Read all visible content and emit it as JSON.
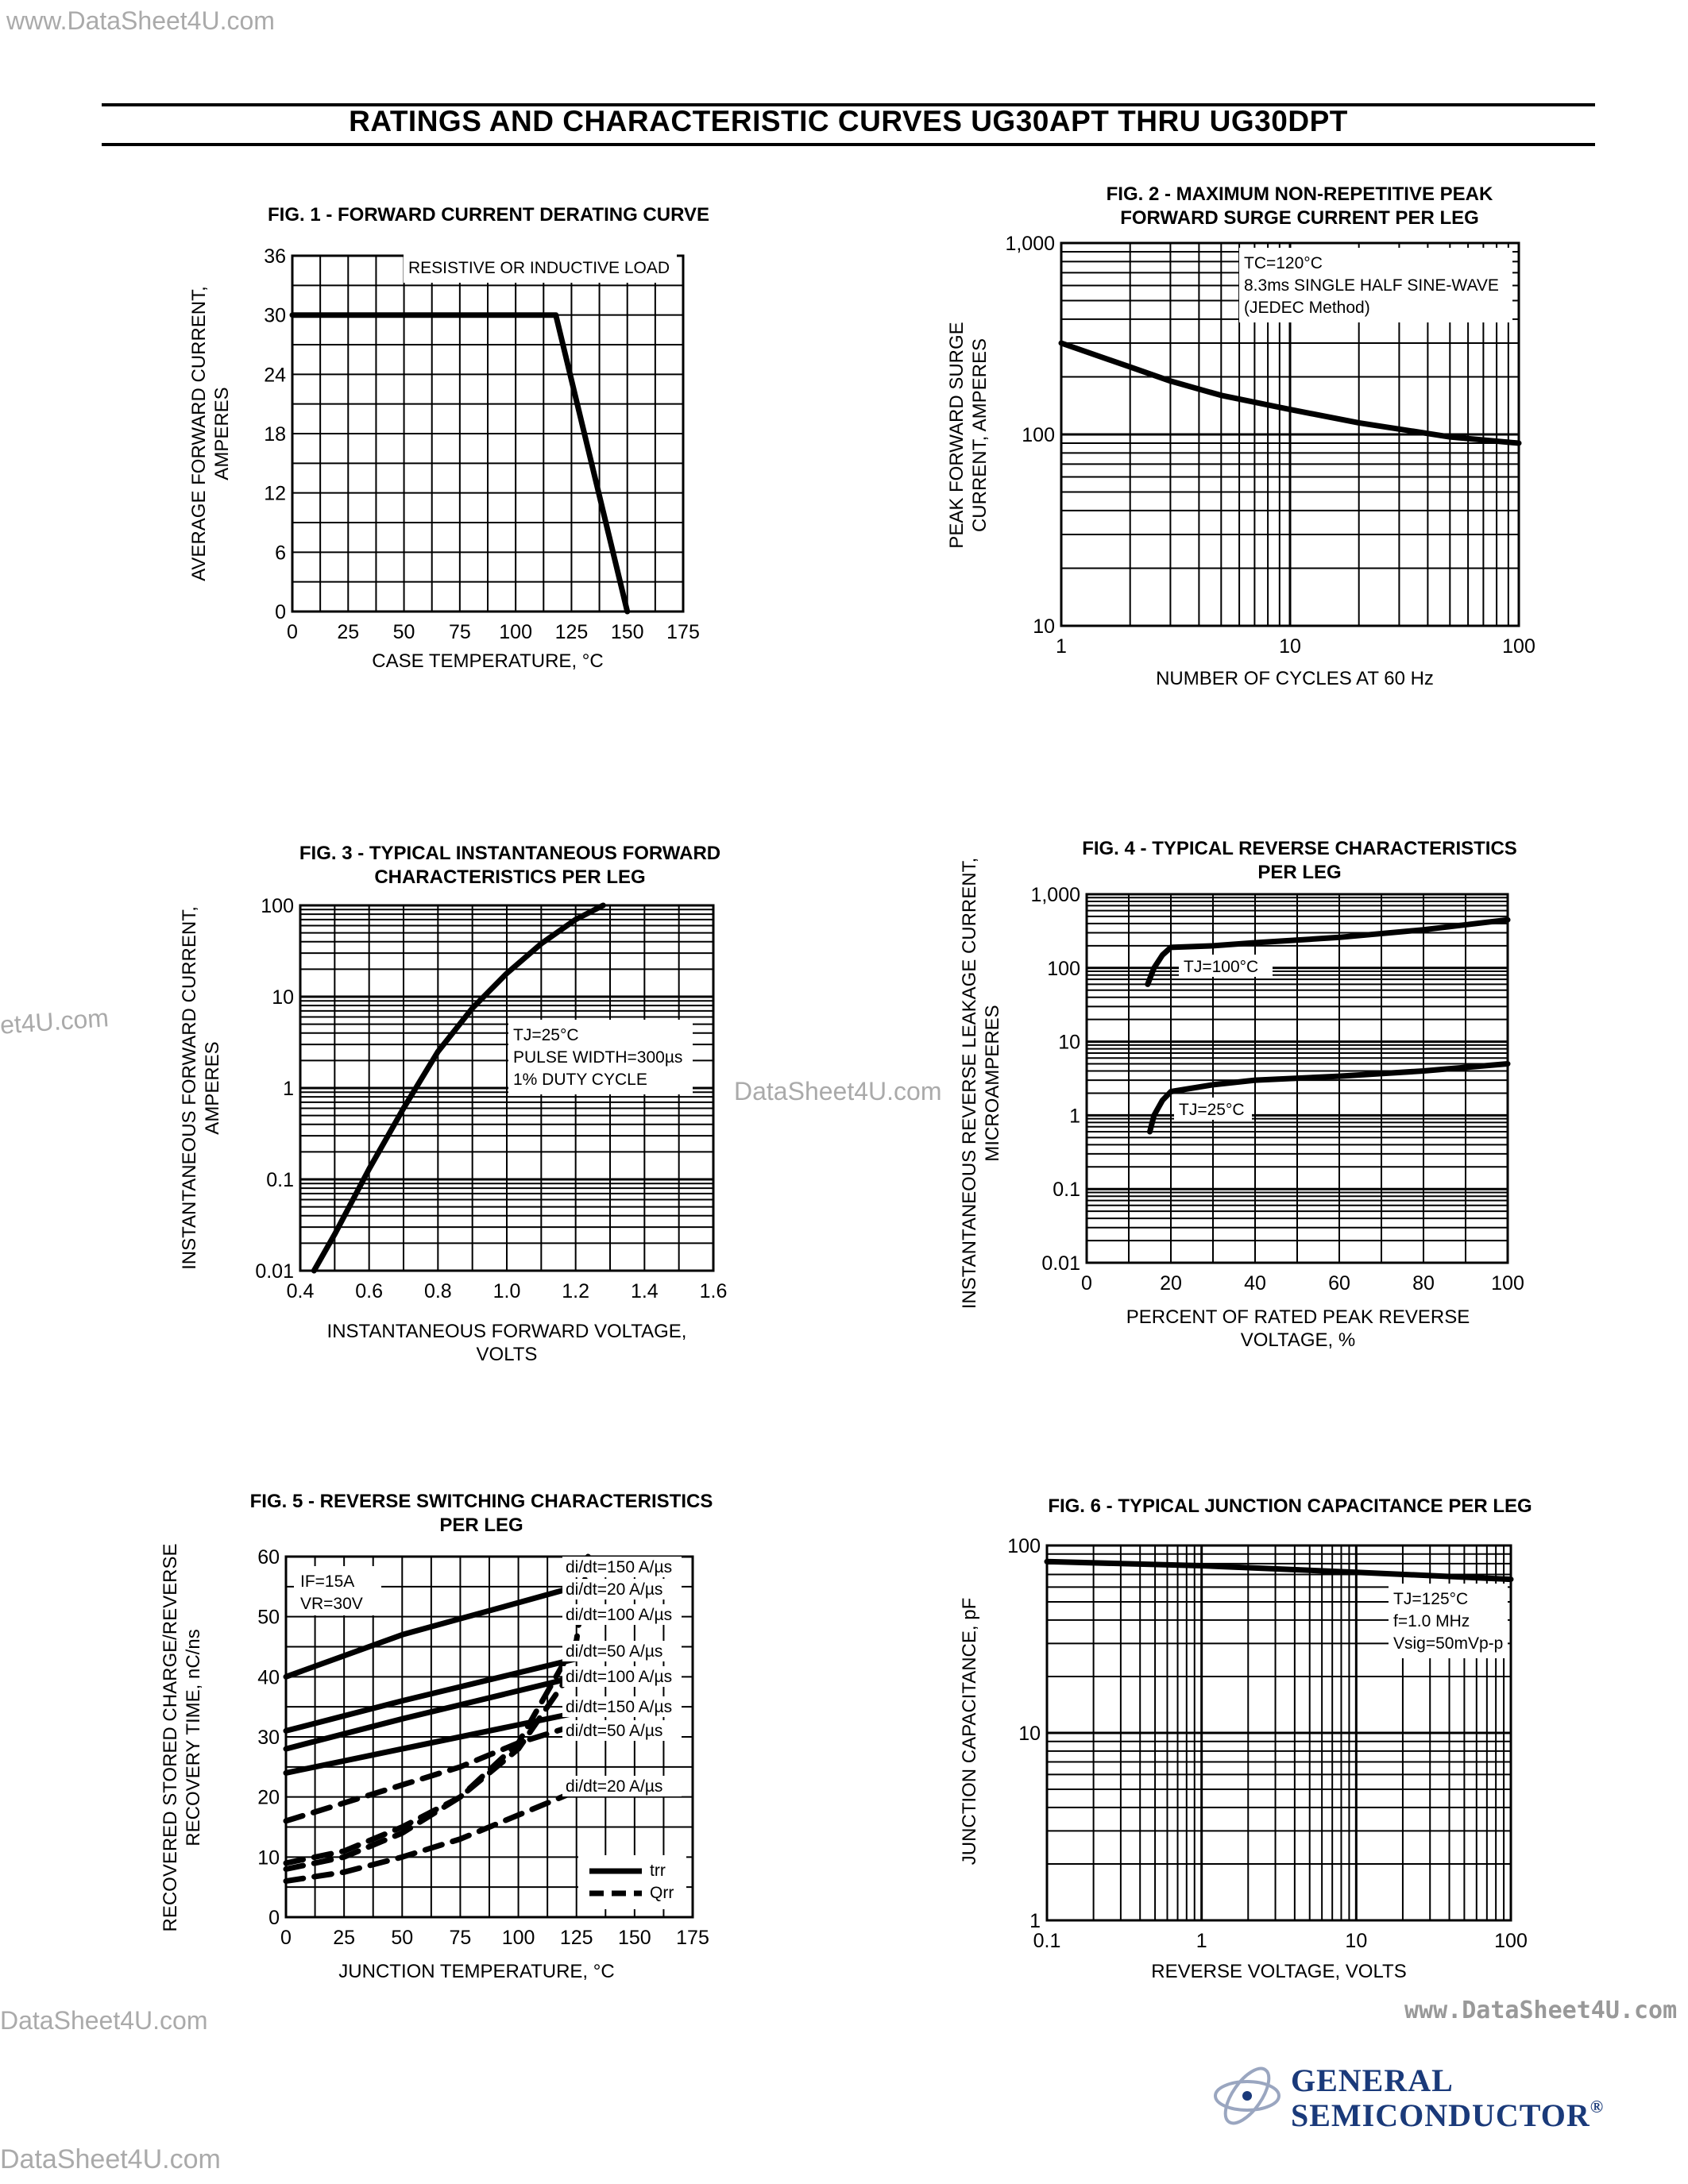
{
  "watermarks": {
    "top_left": "www.DataSheet4U.com",
    "mid_left": "et4U.com",
    "mid_center": "DataSheet4U.com",
    "low_left": "DataSheet4U.com",
    "low_right": "www.DataSheet4U.com",
    "bottom_left": "DataSheet4U.com"
  },
  "page_title": "RATINGS AND CHARACTERISTIC CURVES UG30APT THRU UG30DPT",
  "brand": {
    "line1": "GENERAL",
    "line2": "SEMICONDUCTOR",
    "mark": "®",
    "color": "#1a3a7a"
  },
  "chart_data": [
    {
      "id": "fig1",
      "type": "line",
      "title": "FIG. 1 - FORWARD CURRENT DERATING CURVE",
      "xlabel": "CASE TEMPERATURE, °C",
      "ylabel": [
        "AVERAGE FORWARD CURRENT,",
        "AMPERES"
      ],
      "x_ticks": [
        "0",
        "25",
        "50",
        "75",
        "100",
        "125",
        "150",
        "175"
      ],
      "y_ticks": [
        "0",
        "6",
        "12",
        "18",
        "24",
        "30",
        "36"
      ],
      "xlim": [
        0,
        175
      ],
      "ylim": [
        0,
        36
      ],
      "annotation": [
        "RESISTIVE OR INDUCTIVE LOAD"
      ],
      "series": [
        {
          "x": [
            0,
            118,
            150
          ],
          "y": [
            30,
            30,
            0
          ]
        }
      ]
    },
    {
      "id": "fig2",
      "type": "line",
      "xscale": "log",
      "yscale": "log",
      "title": [
        "FIG. 2 - MAXIMUM NON-REPETITIVE PEAK",
        "FORWARD SURGE CURRENT PER LEG"
      ],
      "xlabel": "NUMBER OF CYCLES AT 60 Hz",
      "ylabel": [
        "PEAK FORWARD SURGE",
        "CURRENT, AMPERES"
      ],
      "x_ticks": [
        "1",
        "10",
        "100"
      ],
      "y_ticks": [
        "10",
        "100",
        "1,000"
      ],
      "xlim": [
        1,
        100
      ],
      "ylim": [
        10,
        1000
      ],
      "annotation": [
        "TC=120°C",
        "8.3ms SINGLE HALF SINE-WAVE",
        "(JEDEC Method)"
      ],
      "series": [
        {
          "x": [
            1,
            2,
            3,
            5,
            10,
            20,
            50,
            100
          ],
          "y": [
            300,
            225,
            190,
            160,
            135,
            115,
            97,
            90
          ]
        }
      ]
    },
    {
      "id": "fig3",
      "type": "line",
      "yscale": "log",
      "title": [
        "FIG. 3 - TYPICAL INSTANTANEOUS FORWARD",
        "CHARACTERISTICS PER LEG"
      ],
      "xlabel": [
        "INSTANTANEOUS FORWARD VOLTAGE,",
        "VOLTS"
      ],
      "ylabel": [
        "INSTANTANEOUS FORWARD CURRENT,",
        "AMPERES"
      ],
      "x_ticks": [
        "0.4",
        "0.6",
        "0.8",
        "1.0",
        "1.2",
        "1.4",
        "1.6"
      ],
      "y_ticks": [
        "0.01",
        "0.1",
        "1",
        "10",
        "100"
      ],
      "xlim": [
        0.4,
        1.6
      ],
      "ylim": [
        0.01,
        100
      ],
      "annotation": [
        "TJ=25°C",
        "PULSE WIDTH=300µs",
        "1% DUTY CYCLE"
      ],
      "series": [
        {
          "x": [
            0.44,
            0.5,
            0.6,
            0.7,
            0.8,
            0.9,
            1.0,
            1.1,
            1.2,
            1.28
          ],
          "y": [
            0.01,
            0.025,
            0.13,
            0.6,
            2.5,
            7.5,
            18,
            38,
            70,
            100
          ]
        }
      ]
    },
    {
      "id": "fig4",
      "type": "line",
      "yscale": "log",
      "title": [
        "FIG. 4 - TYPICAL REVERSE CHARACTERISTICS",
        "PER LEG"
      ],
      "xlabel": [
        "PERCENT OF RATED PEAK REVERSE",
        "VOLTAGE, %"
      ],
      "ylabel": [
        "INSTANTANEOUS REVERSE LEAKAGE CURRENT,",
        "MICROAMPERES"
      ],
      "x_ticks": [
        "0",
        "20",
        "40",
        "60",
        "80",
        "100"
      ],
      "y_ticks": [
        "0.01",
        "0.1",
        "1",
        "10",
        "100",
        "1,000"
      ],
      "xlim": [
        0,
        100
      ],
      "ylim": [
        0.01,
        1000
      ],
      "series": [
        {
          "name": "TJ=100°C",
          "x": [
            14.5,
            16,
            18,
            20,
            30,
            40,
            60,
            80,
            100
          ],
          "y": [
            60,
            100,
            150,
            190,
            200,
            220,
            260,
            330,
            450
          ]
        },
        {
          "name": "TJ=25°C",
          "x": [
            15,
            16,
            18,
            20,
            30,
            40,
            60,
            80,
            100
          ],
          "y": [
            0.6,
            1.0,
            1.6,
            2.1,
            2.6,
            3.0,
            3.4,
            4.0,
            5.0
          ]
        }
      ]
    },
    {
      "id": "fig5",
      "type": "line",
      "title": [
        "FIG. 5 - REVERSE SWITCHING CHARACTERISTICS",
        "PER LEG"
      ],
      "xlabel": "JUNCTION TEMPERATURE, °C",
      "ylabel": [
        "RECOVERED STORED CHARGE/REVERSE",
        "RECOVERY TIME, nC/ns"
      ],
      "x_ticks": [
        "0",
        "25",
        "50",
        "75",
        "100",
        "125",
        "150",
        "175"
      ],
      "y_ticks": [
        "0",
        "10",
        "20",
        "30",
        "40",
        "50",
        "60"
      ],
      "xlim": [
        0,
        175
      ],
      "ylim": [
        0,
        60
      ],
      "conditions": [
        "IF=15A",
        "VR=30V"
      ],
      "legend": {
        "trr": "trr",
        "qrr": "Qrr"
      },
      "series": [
        {
          "name": "di/dt=20 A/µs",
          "kind": "trr",
          "x": [
            0,
            50,
            125
          ],
          "y": [
            40,
            47,
            55
          ]
        },
        {
          "name": "di/dt=50 A/µs",
          "kind": "trr",
          "x": [
            0,
            50,
            125
          ],
          "y": [
            31,
            36,
            43
          ]
        },
        {
          "name": "di/dt=100 A/µs",
          "kind": "trr",
          "x": [
            0,
            50,
            125
          ],
          "y": [
            28,
            33,
            40
          ]
        },
        {
          "name": "di/dt=150 A/µs",
          "kind": "trr",
          "x": [
            0,
            50,
            125
          ],
          "y": [
            24,
            28,
            34
          ]
        },
        {
          "name": "di/dt=150 A/µs",
          "kind": "Qrr",
          "x": [
            0,
            25,
            50,
            75,
            100,
            125,
            130
          ],
          "y": [
            9,
            11,
            15,
            20,
            29,
            46,
            60
          ]
        },
        {
          "name": "di/dt=100 A/µs",
          "kind": "Qrr",
          "x": [
            0,
            25,
            50,
            75,
            100,
            125
          ],
          "y": [
            8,
            10,
            14,
            20,
            28,
            42
          ]
        },
        {
          "name": "di/dt=50 A/µs",
          "kind": "Qrr",
          "x": [
            0,
            25,
            50,
            75,
            100,
            125
          ],
          "y": [
            16,
            19,
            22,
            25,
            29,
            32
          ]
        },
        {
          "name": "di/dt=20 A/µs",
          "kind": "Qrr",
          "x": [
            0,
            25,
            50,
            75,
            100,
            125
          ],
          "y": [
            6,
            7.5,
            10,
            13,
            17,
            21
          ]
        }
      ]
    },
    {
      "id": "fig6",
      "type": "line",
      "xscale": "log",
      "yscale": "log",
      "title": "FIG. 6 - TYPICAL JUNCTION CAPACITANCE PER LEG",
      "xlabel": "REVERSE VOLTAGE, VOLTS",
      "ylabel": "JUNCTION CAPACITANCE, pF",
      "x_ticks": [
        "0.1",
        "1",
        "10",
        "100"
      ],
      "y_ticks": [
        "1",
        "10",
        "100"
      ],
      "xlim": [
        0.1,
        100
      ],
      "ylim": [
        1,
        100
      ],
      "annotation": [
        "TJ=125°C",
        "f=1.0 MHz",
        "Vsig=50mVp-p"
      ],
      "series": [
        {
          "x": [
            0.1,
            1,
            10,
            100
          ],
          "y": [
            82,
            78,
            72,
            66
          ]
        }
      ]
    }
  ]
}
